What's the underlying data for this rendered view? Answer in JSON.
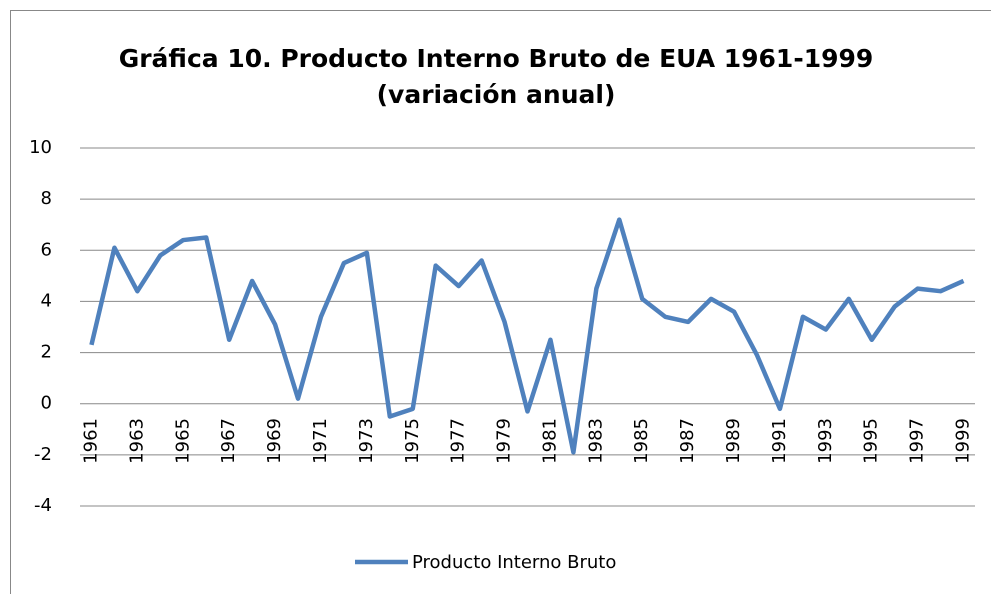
{
  "chart_data": {
    "type": "line",
    "title": [
      "Gráfica 10. Producto Interno Bruto de EUA 1961-1999",
      "(variación anual)"
    ],
    "categories": [
      "1961",
      null,
      "1963",
      null,
      "1965",
      null,
      "1967",
      null,
      "1969",
      null,
      "1971",
      null,
      "1973",
      null,
      "1975",
      null,
      "1977",
      null,
      "1979",
      null,
      "1981",
      null,
      "1983",
      null,
      "1985",
      null,
      "1987",
      null,
      "1989",
      null,
      "1991",
      null,
      "1993",
      null,
      "1995",
      null,
      "1997",
      null,
      "1999"
    ],
    "series": [
      {
        "name": "Producto Interno Bruto",
        "color": "#4f81bd",
        "values": [
          2.3,
          6.1,
          4.4,
          5.8,
          6.4,
          6.5,
          2.5,
          4.8,
          3.1,
          0.2,
          3.4,
          5.5,
          5.9,
          -0.5,
          -0.2,
          5.4,
          4.6,
          5.6,
          3.2,
          -0.3,
          2.5,
          -1.9,
          4.5,
          7.2,
          4.1,
          3.4,
          3.2,
          4.1,
          3.6,
          1.9,
          -0.2,
          3.4,
          2.9,
          4.1,
          2.5,
          3.8,
          4.5,
          4.4,
          4.8
        ]
      }
    ],
    "ylim": [
      -4,
      10
    ],
    "yticks": [
      -4,
      -2,
      0,
      2,
      4,
      6,
      8,
      10
    ],
    "grid": true,
    "legend": "bottom"
  }
}
